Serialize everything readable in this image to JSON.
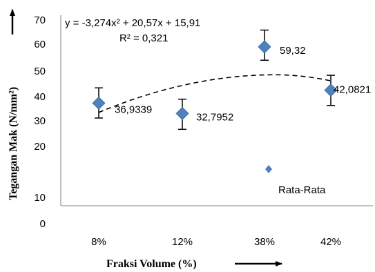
{
  "chart_data": {
    "type": "scatter",
    "xlabel": "Fraksi Volume (%)",
    "ylabel": "Tegangan Mak  (N/mm²)",
    "categories": [
      "8%",
      "12%",
      "38%",
      "42%"
    ],
    "y_ticks": [
      "0",
      "10",
      "20",
      "30",
      "40",
      "50",
      "60",
      "70"
    ],
    "series": [
      {
        "name": "Rata-Rata",
        "color": "#4f81bd",
        "marker": "diamond",
        "values": [
          36.9339,
          32.7952,
          59.32,
          42.0821
        ],
        "data_labels": [
          "36,9339",
          "32,7952",
          "59,32",
          "42,0821"
        ],
        "error_low": [
          31,
          26.5,
          54,
          36
        ],
        "error_high": [
          43,
          38.5,
          66,
          48
        ]
      }
    ],
    "trendline": {
      "type": "polynomial",
      "order": 2,
      "style": "dashed",
      "color": "#000000",
      "equation": "y = -3,274x² + 20,57x + 15,91",
      "r_squared": "R² = 0,321",
      "coefficients": [
        -3.274,
        20.57,
        15.91
      ]
    },
    "legend": {
      "position": "bottom-right",
      "entry": "Rata-Rata"
    },
    "grid": false
  }
}
